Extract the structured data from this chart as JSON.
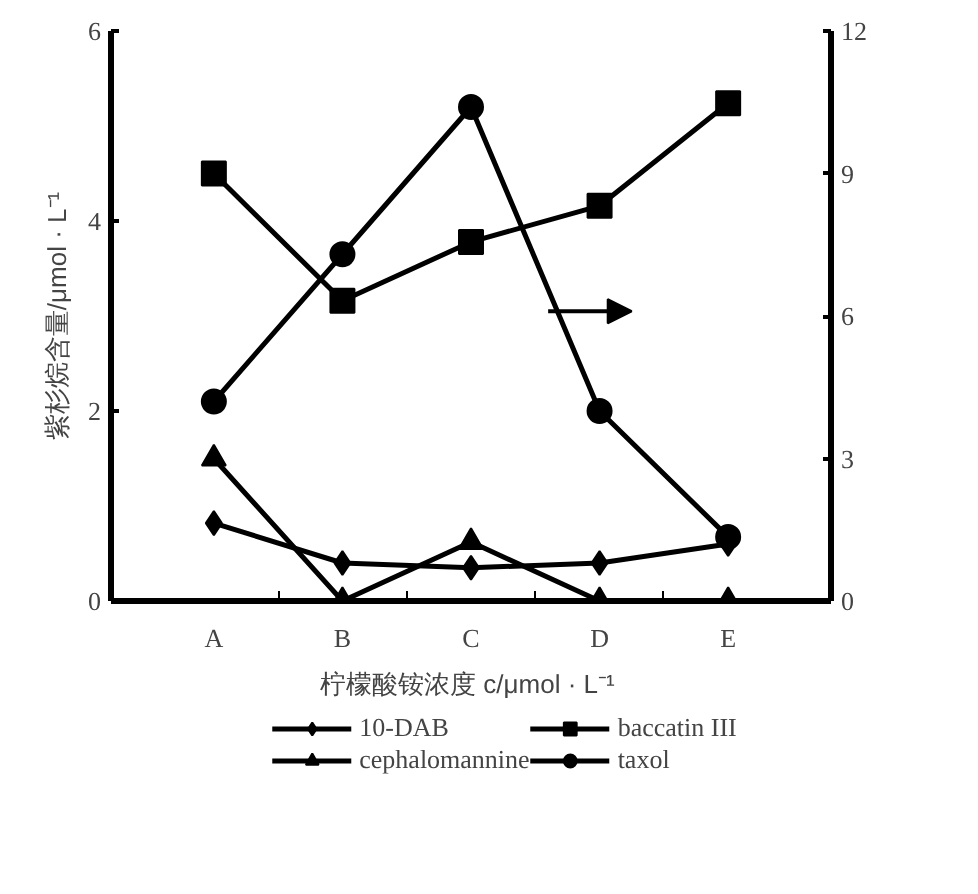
{
  "chart_data": {
    "type": "line",
    "xlabel": "柠檬酸铵浓度  c/μmol · L⁻¹",
    "ylabel": "紫杉烷含量/μmol · L⁻¹",
    "categories": [
      "A",
      "B",
      "C",
      "D",
      "E"
    ],
    "ylim": [
      0,
      6
    ],
    "yticks": [
      0,
      2,
      4,
      6
    ],
    "y2lim": [
      0,
      12
    ],
    "y2ticks": [
      0,
      3,
      6,
      9,
      12
    ],
    "grid": false,
    "legend": "bottom",
    "line_style": "solid",
    "series": [
      {
        "name": "10-DAB",
        "color": "#000000",
        "marker": "diamond",
        "values": [
          0.82,
          0.4,
          0.35,
          0.4,
          0.6
        ]
      },
      {
        "name": "baccatin III",
        "color": "#000000",
        "marker": "square",
        "values": [
          4.5,
          3.16,
          3.78,
          4.16,
          5.24
        ]
      },
      {
        "name": "cephalomannine",
        "color": "#000000",
        "marker": "triangle",
        "values": [
          1.5,
          0,
          0.62,
          0,
          0
        ]
      },
      {
        "name": "taxol",
        "color": "#000000",
        "marker": "circle",
        "axis": "y2",
        "values": [
          4.2,
          7.3,
          10.4,
          4.0,
          1.35
        ]
      }
    ]
  }
}
